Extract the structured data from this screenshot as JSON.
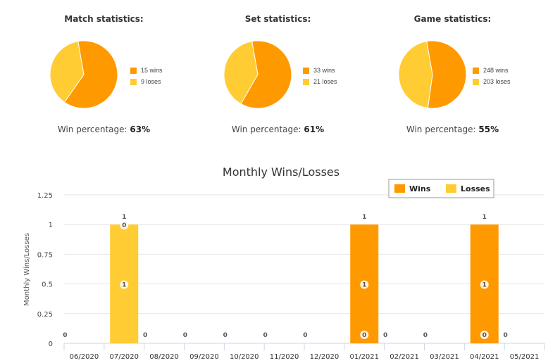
{
  "pies": [
    {
      "title": "Match statistics:",
      "wins_label": "15 wins",
      "losses_label": "9 loses",
      "wins": 15,
      "losses": 9,
      "pct_prefix": "Win percentage: ",
      "pct_value": "63%"
    },
    {
      "title": "Set statistics:",
      "wins_label": "33 wins",
      "losses_label": "21 loses",
      "wins": 33,
      "losses": 21,
      "pct_prefix": "Win percentage: ",
      "pct_value": "61%"
    },
    {
      "title": "Game statistics:",
      "wins_label": "248 wins",
      "losses_label": "203 loses",
      "wins": 248,
      "losses": 203,
      "pct_prefix": "Win percentage: ",
      "pct_value": "55%"
    }
  ],
  "colors": {
    "wins": "#FF9900",
    "losses": "#FFCC33",
    "grid": "#e6e6e6",
    "axis": "#ccd6eb"
  },
  "chart_data": {
    "type": "bar",
    "title": "Monthly Wins/Losses",
    "ylabel": "Monthly Wins/Losses",
    "xlabel": "",
    "ylim": [
      0,
      1.25
    ],
    "yticks": [
      "0",
      "0.25",
      "0.5",
      "0.75",
      "1",
      "1.25"
    ],
    "categories": [
      "06/2020",
      "07/2020",
      "08/2020",
      "09/2020",
      "10/2020",
      "11/2020",
      "12/2020",
      "01/2021",
      "02/2021",
      "03/2021",
      "04/2021",
      "05/2021"
    ],
    "stacked": true,
    "legend_position": "top-right",
    "grid": true,
    "series": [
      {
        "name": "Wins",
        "values": [
          0,
          0,
          0,
          0,
          0,
          0,
          0,
          1,
          0,
          0,
          1,
          0
        ]
      },
      {
        "name": "Losses",
        "values": [
          0,
          1,
          0,
          0,
          0,
          0,
          0,
          0,
          0,
          0,
          0,
          0
        ]
      }
    ],
    "totals": [
      0,
      1,
      0,
      0,
      0,
      0,
      0,
      1,
      0,
      0,
      1,
      0
    ]
  }
}
